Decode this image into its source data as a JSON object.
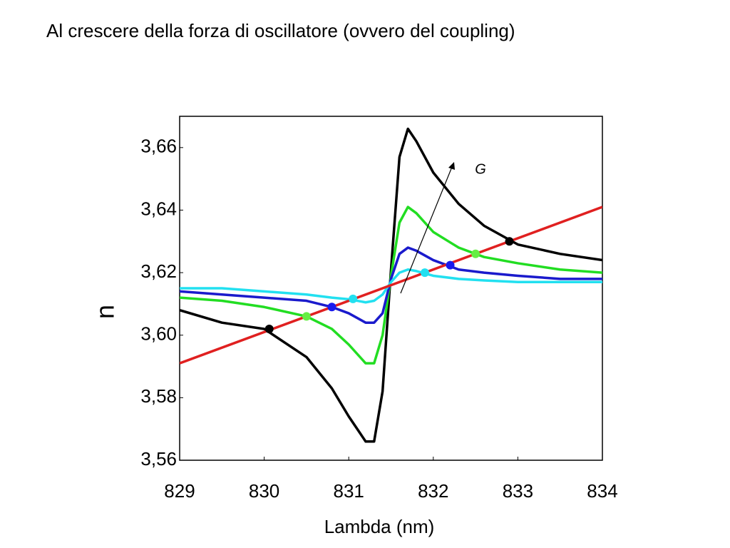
{
  "chart_data": {
    "type": "line",
    "title": "Al crescere della forza di oscillatore (ovvero del coupling)",
    "x_label": "Lambda (nm)",
    "y_label": "n",
    "annotation": "G",
    "x": [
      829,
      829.5,
      830,
      830.5,
      830.8,
      831,
      831.2,
      831.3,
      831.4,
      831.5,
      831.6,
      831.7,
      831.8,
      832,
      832.3,
      832.6,
      833,
      833.5,
      834
    ],
    "series": [
      {
        "color": "#000000",
        "point_color": "#000000",
        "values": [
          3.608,
          3.604,
          3.602,
          3.593,
          3.583,
          3.574,
          3.566,
          3.566,
          3.582,
          3.621,
          3.657,
          3.666,
          3.662,
          3.652,
          3.642,
          3.635,
          3.629,
          3.626,
          3.624
        ],
        "points": {
          "x": [
            830.06,
            832.9
          ],
          "y": [
            3.602,
            3.63
          ]
        }
      },
      {
        "color": "#22dd22",
        "point_color": "#66ee44",
        "values": [
          3.612,
          3.611,
          3.609,
          3.606,
          3.602,
          3.597,
          3.591,
          3.591,
          3.6,
          3.619,
          3.636,
          3.641,
          3.639,
          3.633,
          3.628,
          3.625,
          3.623,
          3.621,
          3.62
        ],
        "points": {
          "x": [
            830.5,
            832.5
          ],
          "y": [
            3.606,
            3.626
          ]
        }
      },
      {
        "color": "#1a1acc",
        "point_color": "#1a1aee",
        "values": [
          3.614,
          3.613,
          3.612,
          3.611,
          3.609,
          3.607,
          3.604,
          3.604,
          3.607,
          3.618,
          3.626,
          3.628,
          3.627,
          3.624,
          3.621,
          3.62,
          3.619,
          3.618,
          3.618
        ],
        "points": {
          "x": [
            830.8,
            832.2
          ],
          "y": [
            3.609,
            3.6224
          ]
        }
      },
      {
        "color": "#22e0f0",
        "point_color": "#22e0f0",
        "values": [
          3.615,
          3.615,
          3.614,
          3.613,
          3.612,
          3.6115,
          3.6105,
          3.611,
          3.613,
          3.617,
          3.62,
          3.621,
          3.6205,
          3.619,
          3.618,
          3.6175,
          3.617,
          3.617,
          3.617
        ],
        "points": {
          "x": [
            831.05,
            831.9
          ],
          "y": [
            3.6116,
            3.62
          ]
        }
      },
      {
        "color": "#e02020",
        "x": [
          829,
          834
        ],
        "values": [
          3.591,
          3.641
        ]
      }
    ],
    "xlim": [
      829,
      834
    ],
    "ylim": [
      3.56,
      3.67
    ],
    "xticks": [
      829,
      830,
      831,
      832,
      833,
      834
    ],
    "yticks": [
      {
        "value": 3.56,
        "label": "3,56"
      },
      {
        "value": 3.58,
        "label": "3,58"
      },
      {
        "value": 3.6,
        "label": "3,60"
      },
      {
        "value": 3.62,
        "label": "3,62"
      },
      {
        "value": 3.64,
        "label": "3,64"
      },
      {
        "value": 3.66,
        "label": "3,66"
      }
    ]
  }
}
